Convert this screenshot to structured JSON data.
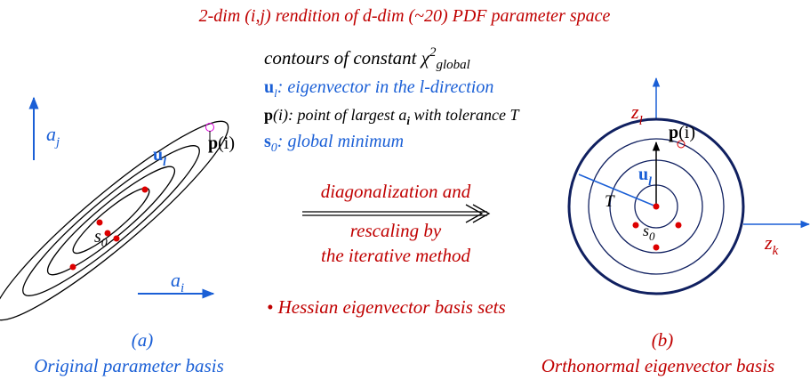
{
  "title": "2-dim (i,j) rendition of d-dim (~20) PDF parameter space",
  "left": {
    "aj": [
      "a",
      "j"
    ],
    "ai": [
      "a",
      "i"
    ],
    "ul": [
      "u",
      "l"
    ],
    "p": "p",
    "pi": "(i)",
    "s0": [
      "s",
      "0"
    ],
    "label": "(a)",
    "caption": "Original parameter basis"
  },
  "legend": {
    "contours": [
      "contours of constant χ",
      "2",
      "global"
    ],
    "u": [
      "u",
      "l",
      ": eigenvector in the l-direction"
    ],
    "p": [
      "p",
      "(i): point of largest a",
      "i",
      " with tolerance T"
    ],
    "s": [
      "s",
      "0",
      ": global minimum"
    ]
  },
  "arrow": [
    "diagonalization and",
    "rescaling by",
    "the iterative method"
  ],
  "bullet": "• Hessian eigenvector basis sets",
  "right": {
    "zl": [
      "z",
      "l"
    ],
    "zk": [
      "z",
      "k"
    ],
    "p": "p",
    "pi": "(i)",
    "ul": [
      "u",
      "l"
    ],
    "T": "T",
    "s0": [
      "s",
      "0"
    ],
    "label": "(b)",
    "caption": "Orthonormal eigenvector basis"
  }
}
